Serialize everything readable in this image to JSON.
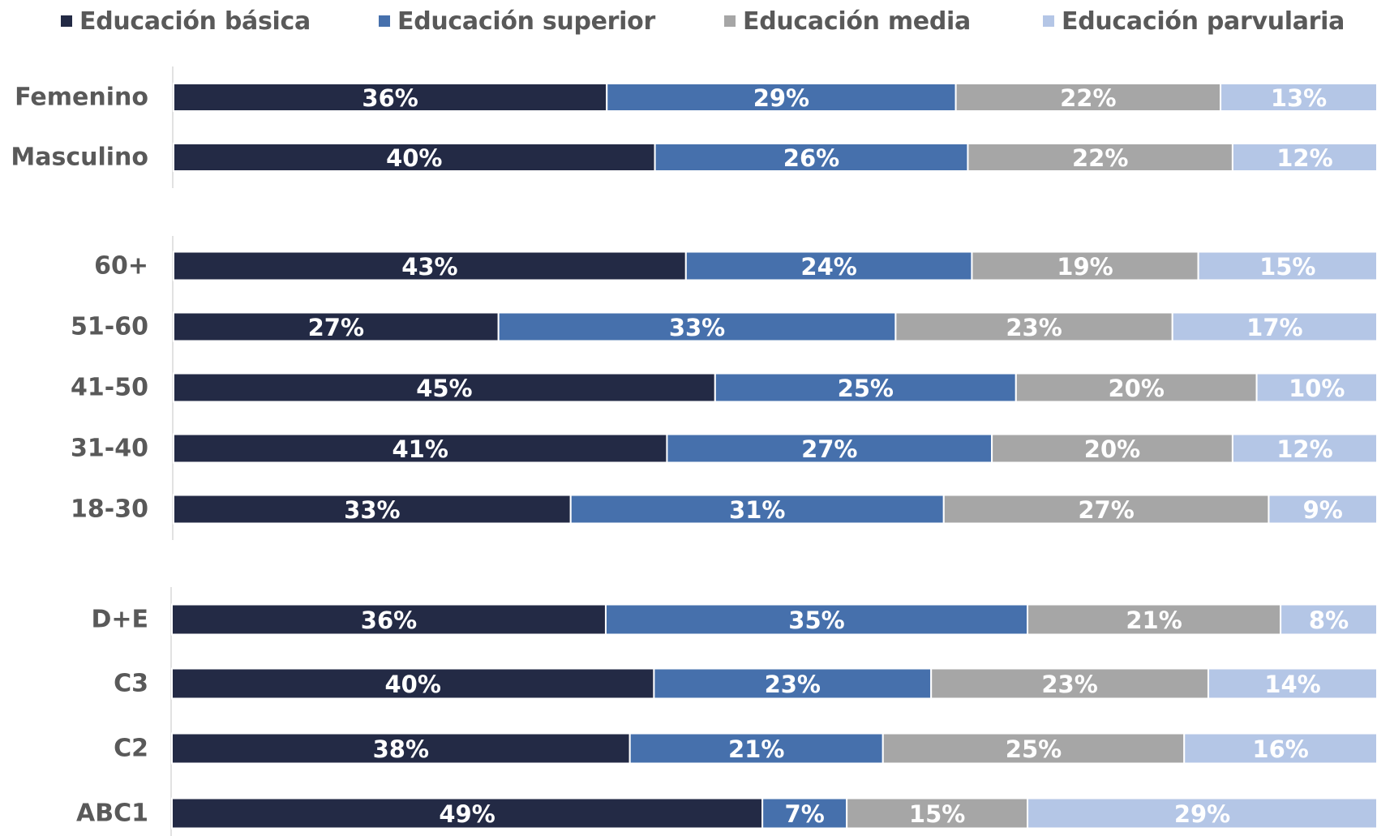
{
  "chart_data": {
    "type": "bar",
    "orientation": "horizontal",
    "stacked": true,
    "normalized": true,
    "xlim": [
      0,
      100
    ],
    "grid": false,
    "legend_position": "top",
    "series": [
      {
        "name": "Educación básica",
        "color": "#232a45",
        "values": [
          36,
          40,
          43,
          27,
          45,
          41,
          33,
          36,
          40,
          38,
          49
        ]
      },
      {
        "name": "Educación superior",
        "color": "#4670ac",
        "values": [
          29,
          26,
          24,
          33,
          25,
          27,
          31,
          35,
          23,
          21,
          7
        ]
      },
      {
        "name": "Educación media",
        "color": "#a6a6a6",
        "values": [
          22,
          22,
          19,
          23,
          20,
          20,
          27,
          21,
          23,
          25,
          15
        ]
      },
      {
        "name": "Educación parvularia",
        "color": "#b4c6e6",
        "values": [
          13,
          12,
          15,
          17,
          10,
          12,
          9,
          8,
          14,
          16,
          29
        ]
      }
    ],
    "data_labels": [
      [
        "36%",
        "40%",
        "43%",
        "27%",
        "45%",
        "41%",
        "33%",
        "36%",
        "40%",
        "38%",
        "49%"
      ],
      [
        "29%",
        "26%",
        "24%",
        "33%",
        "25%",
        "27%",
        "31%",
        "35%",
        "23%",
        "21%",
        "7%"
      ],
      [
        "22%",
        "22%",
        "19%",
        "23%",
        "20%",
        "20%",
        "27%",
        "21%",
        "23%",
        "25%",
        "15%"
      ],
      [
        "13%",
        "12%",
        "15%",
        "17%",
        "10%",
        "12%",
        "9%",
        "8%",
        "14%",
        "16%",
        "29%"
      ]
    ],
    "groups": [
      {
        "categories": [
          "Femenino",
          "Masculino"
        ]
      },
      {
        "categories": [
          "60+",
          "51-60",
          "41-50",
          "31-40",
          "18-30"
        ]
      },
      {
        "categories": [
          "D+E",
          "C3",
          "C2",
          "ABC1"
        ]
      }
    ]
  }
}
